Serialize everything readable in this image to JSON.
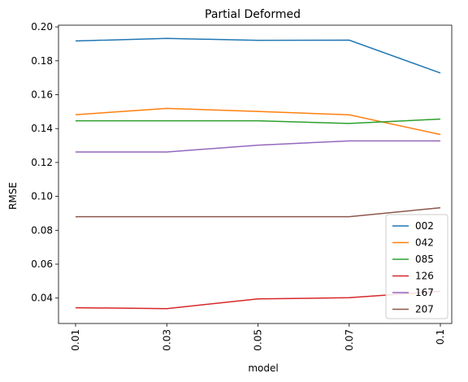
{
  "chart_data": {
    "type": "line",
    "title": "Partial Deformed",
    "xlabel": "model",
    "ylabel": "RMSE",
    "categories": [
      "0.01",
      "0.03",
      "0.05",
      "0.07",
      "0.1"
    ],
    "ylim": [
      0.025,
      0.201
    ],
    "yticks": [
      "0.04",
      "0.06",
      "0.08",
      "0.10",
      "0.12",
      "0.14",
      "0.16",
      "0.18",
      "0.20"
    ],
    "legend_position": "lower-right",
    "grid": false,
    "series": [
      {
        "name": "002",
        "color": "#1f77b4",
        "values": [
          0.1917,
          0.1932,
          0.1921,
          0.1922,
          0.1728
        ]
      },
      {
        "name": "042",
        "color": "#ff7f0e",
        "values": [
          0.1482,
          0.1519,
          0.1501,
          0.1481,
          0.1365
        ]
      },
      {
        "name": "085",
        "color": "#2ca02c",
        "values": [
          0.1446,
          0.1446,
          0.1446,
          0.143,
          0.1456
        ]
      },
      {
        "name": "126",
        "color": "#d62728",
        "values": [
          0.0343,
          0.0338,
          0.0395,
          0.0402,
          0.044
        ]
      },
      {
        "name": "167",
        "color": "#9467bd",
        "values": [
          0.1262,
          0.1262,
          0.1302,
          0.1327,
          0.1327
        ]
      },
      {
        "name": "207",
        "color": "#8c564b",
        "values": [
          0.088,
          0.088,
          0.088,
          0.088,
          0.0933
        ]
      }
    ]
  }
}
